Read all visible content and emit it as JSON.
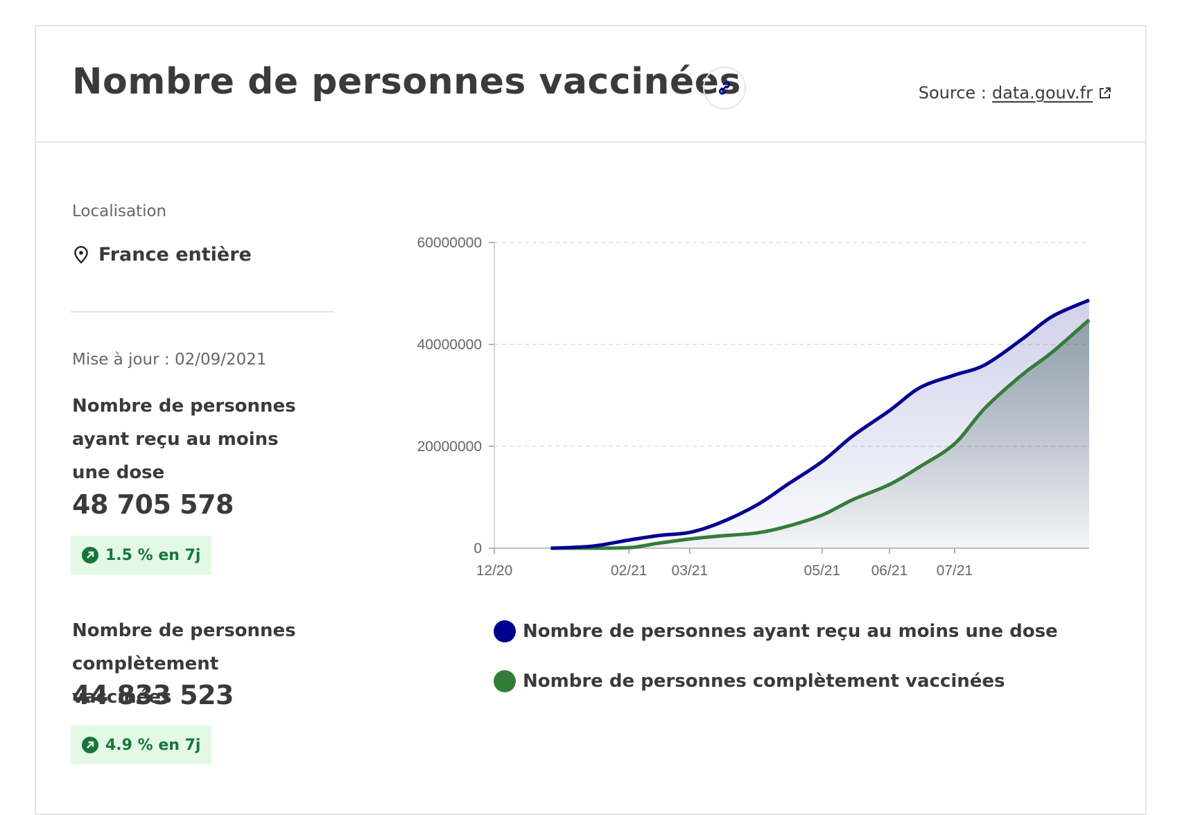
{
  "header": {
    "title": "Nombre de personnes vaccinées",
    "link_icon": "link-icon",
    "source_prefix": "Source :",
    "source_link": "data.gouv.fr",
    "external_icon": "external-link-icon"
  },
  "sidebar": {
    "location_label": "Localisation",
    "location_icon": "map-pin-icon",
    "location_value": "France entière",
    "updated": "Mise à jour : 02/09/2021",
    "metrics": [
      {
        "label": "Nombre de personnes ayant reçu au moins une dose",
        "value": "48 705 578",
        "trend": "1.5 % en 7j",
        "trend_icon": "arrow-up-right-icon"
      },
      {
        "label": "Nombre de personnes complètement vaccinées",
        "value": "44 833 523",
        "trend": "4.9 % en 7j",
        "trend_icon": "arrow-up-right-icon"
      }
    ]
  },
  "colors": {
    "series1": "#000091",
    "series2": "#347d39",
    "badge_bg": "#e3f9e5",
    "badge_text": "#18753c"
  },
  "chart_data": {
    "type": "area",
    "title": "",
    "xlabel": "",
    "ylabel": "",
    "x_ticks": [
      "12/20",
      "02/21",
      "03/21",
      "05/21",
      "06/21",
      "07/21"
    ],
    "y_ticks": [
      "0",
      "20000000",
      "40000000",
      "60000000"
    ],
    "ylim": [
      0,
      60000000
    ],
    "grid": "horizontal dashed",
    "legend_placement": "bottom",
    "x": [
      "2020-12-27",
      "2021-01-15",
      "2021-02-01",
      "2021-02-15",
      "2021-03-01",
      "2021-03-15",
      "2021-04-01",
      "2021-04-15",
      "2021-05-01",
      "2021-05-15",
      "2021-06-01",
      "2021-06-15",
      "2021-07-01",
      "2021-07-15",
      "2021-08-01",
      "2021-08-15",
      "2021-09-01"
    ],
    "series": [
      {
        "name": "Nombre de personnes ayant reçu au moins une dose",
        "values": [
          0,
          400000,
          1600000,
          2500000,
          3100000,
          5000000,
          8500000,
          12500000,
          17000000,
          22000000,
          27000000,
          31500000,
          34000000,
          36000000,
          41000000,
          45500000,
          48705578
        ]
      },
      {
        "name": "Nombre de personnes complètement vaccinées",
        "values": [
          0,
          0,
          100000,
          1000000,
          1800000,
          2400000,
          3000000,
          4300000,
          6500000,
          9500000,
          12500000,
          16000000,
          20500000,
          27500000,
          34000000,
          38500000,
          44833523
        ]
      }
    ]
  }
}
